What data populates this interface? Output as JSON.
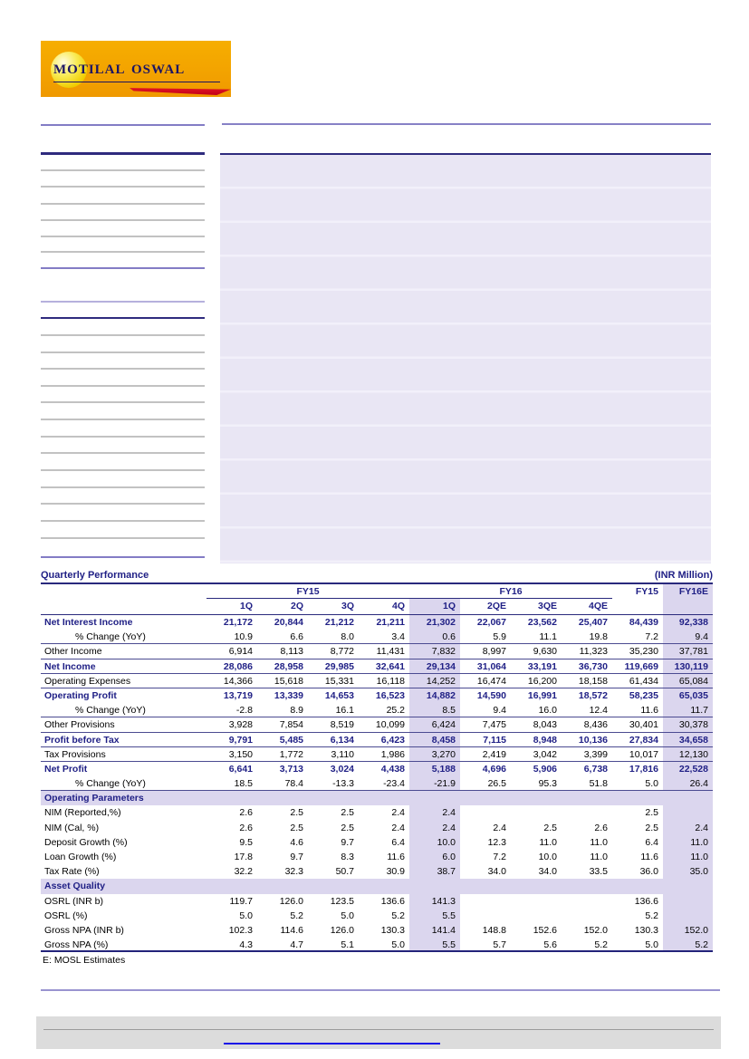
{
  "logo": {
    "brand": "Motilal Oswal"
  },
  "table": {
    "title": "Quarterly Performance",
    "unit_note": "(INR Million)",
    "col_groups": [
      {
        "label": "FY15",
        "span": 4
      },
      {
        "label": "FY16",
        "span": 4
      },
      {
        "label": "FY15",
        "span": 1
      },
      {
        "label": "FY16E",
        "span": 1
      }
    ],
    "sub_headers": [
      "1Q",
      "2Q",
      "3Q",
      "4Q",
      "1Q",
      "2QE",
      "3QE",
      "4QE",
      "",
      ""
    ],
    "highlight_columns": [
      4,
      9
    ],
    "rows": [
      {
        "label": "Net Interest Income",
        "style": "bold",
        "divider": false,
        "values": [
          "21,172",
          "20,844",
          "21,212",
          "21,211",
          "21,302",
          "22,067",
          "23,562",
          "25,407",
          "84,439",
          "92,338"
        ]
      },
      {
        "label": "% Change (YoY)",
        "style": "indent",
        "divider": true,
        "values": [
          "10.9",
          "6.6",
          "8.0",
          "3.4",
          "0.6",
          "5.9",
          "11.1",
          "19.8",
          "7.2",
          "9.4"
        ]
      },
      {
        "label": "Other Income",
        "style": "normal",
        "divider": true,
        "values": [
          "6,914",
          "8,113",
          "8,772",
          "11,431",
          "7,832",
          "8,997",
          "9,630",
          "11,323",
          "35,230",
          "37,781"
        ]
      },
      {
        "label": "Net Income",
        "style": "bold",
        "divider": true,
        "values": [
          "28,086",
          "28,958",
          "29,985",
          "32,641",
          "29,134",
          "31,064",
          "33,191",
          "36,730",
          "119,669",
          "130,119"
        ]
      },
      {
        "label": "Operating Expenses",
        "style": "normal",
        "divider": true,
        "values": [
          "14,366",
          "15,618",
          "15,331",
          "16,118",
          "14,252",
          "16,474",
          "16,200",
          "18,158",
          "61,434",
          "65,084"
        ]
      },
      {
        "label": "Operating Profit",
        "style": "bold",
        "divider": false,
        "values": [
          "13,719",
          "13,339",
          "14,653",
          "16,523",
          "14,882",
          "14,590",
          "16,991",
          "18,572",
          "58,235",
          "65,035"
        ]
      },
      {
        "label": "% Change (YoY)",
        "style": "indent",
        "divider": true,
        "values": [
          "-2.8",
          "8.9",
          "16.1",
          "25.2",
          "8.5",
          "9.4",
          "16.0",
          "12.4",
          "11.6",
          "11.7"
        ]
      },
      {
        "label": "Other Provisions",
        "style": "normal",
        "divider": true,
        "values": [
          "3,928",
          "7,854",
          "8,519",
          "10,099",
          "6,424",
          "7,475",
          "8,043",
          "8,436",
          "30,401",
          "30,378"
        ]
      },
      {
        "label": "Profit before Tax",
        "style": "bold",
        "divider": true,
        "values": [
          "9,791",
          "5,485",
          "6,134",
          "6,423",
          "8,458",
          "7,115",
          "8,948",
          "10,136",
          "27,834",
          "34,658"
        ]
      },
      {
        "label": "Tax Provisions",
        "style": "normal",
        "divider": true,
        "values": [
          "3,150",
          "1,772",
          "3,110",
          "1,986",
          "3,270",
          "2,419",
          "3,042",
          "3,399",
          "10,017",
          "12,130"
        ]
      },
      {
        "label": "Net Profit",
        "style": "bold",
        "divider": false,
        "values": [
          "6,641",
          "3,713",
          "3,024",
          "4,438",
          "5,188",
          "4,696",
          "5,906",
          "6,738",
          "17,816",
          "22,528"
        ]
      },
      {
        "label": "% Change (YoY)",
        "style": "indent",
        "divider": true,
        "values": [
          "18.5",
          "78.4",
          "-13.3",
          "-23.4",
          "-21.9",
          "26.5",
          "95.3",
          "51.8",
          "5.0",
          "26.4"
        ]
      },
      {
        "label": "Operating Parameters",
        "style": "section",
        "divider": false,
        "values": []
      },
      {
        "label": "NIM (Reported,%)",
        "style": "normal",
        "divider": false,
        "values": [
          "2.6",
          "2.5",
          "2.5",
          "2.4",
          "2.4",
          "",
          "",
          "",
          "2.5",
          ""
        ]
      },
      {
        "label": "NIM (Cal, %)",
        "style": "normal",
        "divider": false,
        "values": [
          "2.6",
          "2.5",
          "2.5",
          "2.4",
          "2.4",
          "2.4",
          "2.5",
          "2.6",
          "2.5",
          "2.4"
        ]
      },
      {
        "label": "Deposit Growth (%)",
        "style": "normal",
        "divider": false,
        "values": [
          "9.5",
          "4.6",
          "9.7",
          "6.4",
          "10.0",
          "12.3",
          "11.0",
          "11.0",
          "6.4",
          "11.0"
        ]
      },
      {
        "label": "Loan Growth (%)",
        "style": "normal",
        "divider": false,
        "values": [
          "17.8",
          "9.7",
          "8.3",
          "11.6",
          "6.0",
          "7.2",
          "10.0",
          "11.0",
          "11.6",
          "11.0"
        ]
      },
      {
        "label": "Tax Rate (%)",
        "style": "normal",
        "divider": false,
        "values": [
          "32.2",
          "32.3",
          "50.7",
          "30.9",
          "38.7",
          "34.0",
          "34.0",
          "33.5",
          "36.0",
          "35.0"
        ]
      },
      {
        "label": "Asset Quality",
        "style": "section",
        "divider": false,
        "values": []
      },
      {
        "label": "OSRL (INR b)",
        "style": "normal",
        "divider": false,
        "values": [
          "119.7",
          "126.0",
          "123.5",
          "136.6",
          "141.3",
          "",
          "",
          "",
          "136.6",
          ""
        ]
      },
      {
        "label": "OSRL (%)",
        "style": "normal",
        "divider": false,
        "values": [
          "5.0",
          "5.2",
          "5.0",
          "5.2",
          "5.5",
          "",
          "",
          "",
          "5.2",
          ""
        ]
      },
      {
        "label": "Gross NPA (INR b)",
        "style": "normal",
        "divider": false,
        "values": [
          "102.3",
          "114.6",
          "126.0",
          "130.3",
          "141.4",
          "148.8",
          "152.6",
          "152.0",
          "130.3",
          "152.0"
        ]
      },
      {
        "label": "Gross NPA (%)",
        "style": "normal",
        "divider": "final",
        "values": [
          "4.3",
          "4.7",
          "5.1",
          "5.0",
          "5.5",
          "5.7",
          "5.6",
          "5.2",
          "5.0",
          "5.2"
        ]
      }
    ],
    "footnote": "E: MOSL Estimates"
  },
  "colors": {
    "accent_navy": "#1f1f85",
    "highlight_lavender": "#dbd6ee",
    "logo_orange": "#f3a300",
    "logo_red": "#ee1c25",
    "link_blue": "#1a12e8"
  }
}
